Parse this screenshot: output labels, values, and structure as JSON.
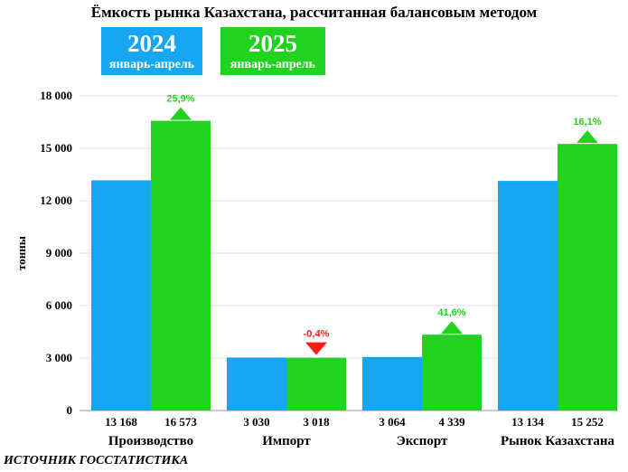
{
  "chart_data": {
    "type": "bar",
    "title": "Ёмкость рынка Казахстана, рассчитанная балансовым методом",
    "ylabel": "тонны",
    "ylim": [
      0,
      18000
    ],
    "yticks": [
      "0",
      "3 000",
      "6 000",
      "9 000",
      "12 000",
      "15 000",
      "18 000"
    ],
    "categories": [
      "Производство",
      "Импорт",
      "Экспорт",
      "Рынок Казахстана"
    ],
    "series": [
      {
        "name": "2024 январь-апрель",
        "color": "#16a6f2",
        "values": [
          13168,
          3030,
          3064,
          13134
        ],
        "value_labels": [
          "13 168",
          "3 030",
          "3 064",
          "13 134"
        ]
      },
      {
        "name": "2025 январь-апрель",
        "color": "#21d21f",
        "values": [
          16573,
          3018,
          4339,
          15252
        ],
        "value_labels": [
          "16 573",
          "3 018",
          "4 339",
          "15 252"
        ]
      }
    ],
    "changes": [
      {
        "label": "25,9%",
        "direction": "up",
        "color": "#21d21f"
      },
      {
        "label": "-0,4%",
        "direction": "down",
        "color": "#ff1a1a"
      },
      {
        "label": "41,6%",
        "direction": "up",
        "color": "#21d21f"
      },
      {
        "label": "16,1%",
        "direction": "up",
        "color": "#21d21f"
      }
    ],
    "grid": true,
    "legend": {
      "placement": "top-left",
      "items": [
        {
          "year": "2024",
          "period": "январь-апрель"
        },
        {
          "year": "2025",
          "period": "январь-апрель"
        }
      ]
    }
  },
  "source": "ИСТОЧНИК ГОССТАТИСТИКА"
}
